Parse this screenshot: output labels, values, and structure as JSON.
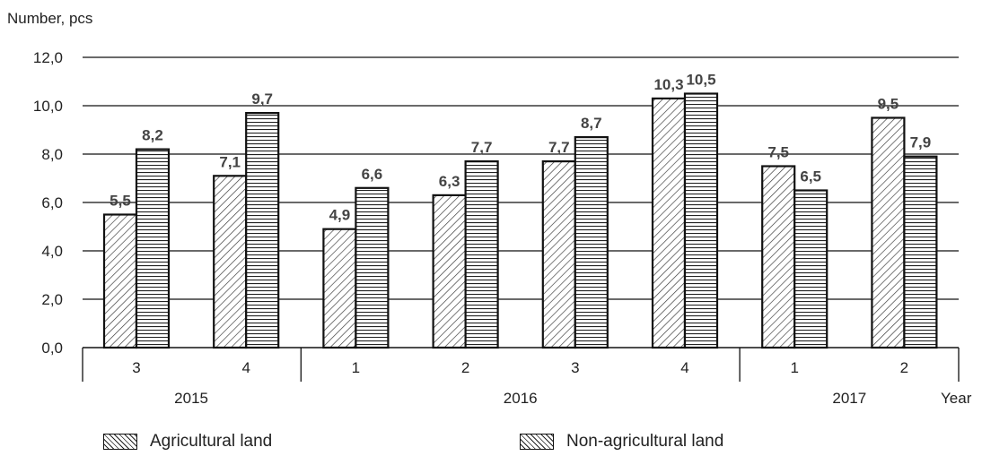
{
  "chart_data": {
    "type": "bar",
    "title": "",
    "ylabel": "Number, pcs",
    "xlabel": "Year",
    "ylim": [
      0,
      12
    ],
    "yticks": [
      "0,0",
      "2,0",
      "4,0",
      "6,0",
      "8,0",
      "10,0",
      "12,0"
    ],
    "categories": [
      "3",
      "4",
      "1",
      "2",
      "3",
      "4",
      "1",
      "2"
    ],
    "years": [
      {
        "label": "2015",
        "from": 0,
        "to": 1
      },
      {
        "label": "2016",
        "from": 2,
        "to": 5
      },
      {
        "label": "2017",
        "from": 6,
        "to": 7
      }
    ],
    "series": [
      {
        "name": "Agricultural land",
        "pattern": "diagonal",
        "values": [
          5.5,
          7.1,
          4.9,
          6.3,
          7.7,
          10.3,
          7.5,
          9.5
        ],
        "labels": [
          "5,5",
          "7,1",
          "4,9",
          "6,3",
          "7,7",
          "10,3",
          "7,5",
          "9,5"
        ]
      },
      {
        "name": "Non-agricultural land",
        "pattern": "horizontal",
        "values": [
          8.2,
          9.7,
          6.6,
          7.7,
          8.7,
          10.5,
          6.5,
          7.9
        ],
        "labels": [
          "8,2",
          "9,7",
          "6,6",
          "7,7",
          "8,7",
          "10,5",
          "6,5",
          "7,9"
        ]
      }
    ],
    "legend": [
      "Agricultural land",
      "Non-agricultural land"
    ],
    "legend_position": "bottom",
    "grid": true,
    "colors": {
      "stroke": "#111111",
      "grid": "#111111",
      "label": "#444444"
    }
  }
}
